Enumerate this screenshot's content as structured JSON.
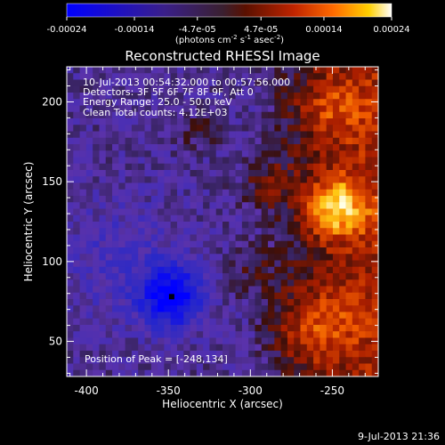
{
  "chart_data": {
    "type": "heatmap",
    "title": "Reconstructed RHESSI Image",
    "xlabel": "Heliocentric X (arcsec)",
    "ylabel": "Heliocentric Y (arcsec)",
    "xlim": [
      -412,
      -222
    ],
    "ylim": [
      28,
      222
    ],
    "xticks": [
      "-400",
      "-350",
      "-300",
      "-250"
    ],
    "xtick_values": [
      -400,
      -350,
      -300,
      -250
    ],
    "yticks": [
      "50",
      "100",
      "150",
      "200"
    ],
    "ytick_values": [
      50,
      100,
      150,
      200
    ],
    "annotations": [
      "10-Jul-2013 00:54:32.000 to 00:57:56.000",
      "Detectors: 3F 5F 6F 7F 8F 9F, Att 0",
      "Energy Range: 25.0 - 50.0 keV",
      "Clean     Total counts: 4.12E+03"
    ],
    "peak_label": "Position of Peak = [-248,134]",
    "peak": [
      -248,
      134
    ],
    "minimum": [
      -348,
      78
    ],
    "colorbar": {
      "ticks": [
        "-0.00024",
        "-0.00014",
        "-4.7e-05",
        "4.7e-05",
        "0.00014",
        "0.00024"
      ],
      "min": -0.00024,
      "max": 0.00024,
      "unit_label": "(photons cm",
      "unit_exp1": "-2",
      "unit_mid": " s",
      "unit_exp2": "-1",
      "unit_mid2": " asec",
      "unit_exp3": "-2",
      "unit_end": ")"
    },
    "colormap": [
      "#0000ff",
      "#5a2aa8",
      "#3a2a6a",
      "#5a1208",
      "#c82a00",
      "#ff7a00",
      "#ffd200",
      "#ffffff"
    ]
  },
  "timestamp": "9-Jul-2013 21:36"
}
